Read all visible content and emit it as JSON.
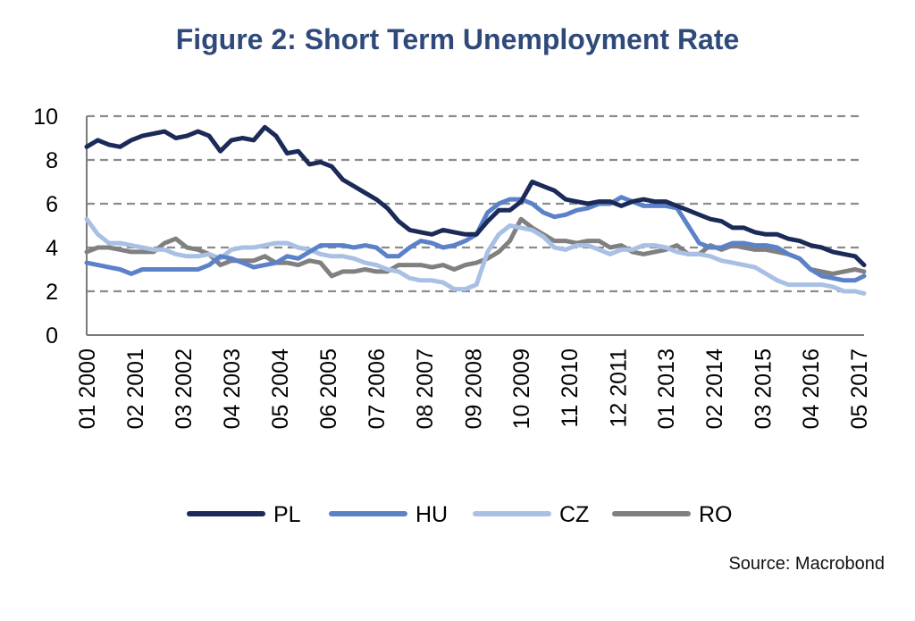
{
  "chart_data": {
    "type": "line",
    "title": "Figure 2: Short Term Unemployment Rate",
    "xlabel": "",
    "ylabel": "",
    "ylim": [
      0,
      10
    ],
    "yticks": [
      "0",
      "2",
      "4",
      "6",
      "8",
      "10"
    ],
    "xlim": [
      2000.0,
      2017.45
    ],
    "xtick_labels": [
      "01 2000",
      "02 2001",
      "03 2002",
      "04 2003",
      "05 2004",
      "06 2005",
      "07 2006",
      "08 2007",
      "09 2008",
      "10 2009",
      "11 2010",
      "12 2011",
      "01 2013",
      "02 2014",
      "03 2015",
      "04 2016",
      "05 2017"
    ],
    "xtick_values": [
      2000.0,
      2001.08,
      2002.17,
      2003.25,
      2004.33,
      2005.42,
      2006.5,
      2007.58,
      2008.67,
      2009.75,
      2010.83,
      2011.92,
      2013.0,
      2014.08,
      2015.17,
      2016.25,
      2017.33
    ],
    "grid": "horizontal dashed",
    "legend_position": "bottom",
    "x": [
      2000.0,
      2000.25,
      2000.5,
      2000.75,
      2001.0,
      2001.25,
      2001.5,
      2001.75,
      2002.0,
      2002.25,
      2002.5,
      2002.75,
      2003.0,
      2003.25,
      2003.5,
      2003.75,
      2004.0,
      2004.25,
      2004.5,
      2004.75,
      2005.0,
      2005.25,
      2005.5,
      2005.75,
      2006.0,
      2006.25,
      2006.5,
      2006.75,
      2007.0,
      2007.25,
      2007.5,
      2007.75,
      2008.0,
      2008.25,
      2008.5,
      2008.75,
      2009.0,
      2009.25,
      2009.5,
      2009.75,
      2010.0,
      2010.25,
      2010.5,
      2010.75,
      2011.0,
      2011.25,
      2011.5,
      2011.75,
      2012.0,
      2012.25,
      2012.5,
      2012.75,
      2013.0,
      2013.25,
      2013.5,
      2013.75,
      2014.0,
      2014.25,
      2014.5,
      2014.75,
      2015.0,
      2015.25,
      2015.5,
      2015.75,
      2016.0,
      2016.25,
      2016.5,
      2016.75,
      2017.0,
      2017.25,
      2017.45
    ],
    "series": [
      {
        "name": "PL",
        "color": "#1b2a57",
        "values": [
          8.6,
          8.9,
          8.7,
          8.6,
          8.9,
          9.1,
          9.2,
          9.3,
          9.0,
          9.1,
          9.3,
          9.1,
          8.4,
          8.9,
          9.0,
          8.9,
          9.5,
          9.1,
          8.3,
          8.4,
          7.8,
          7.9,
          7.7,
          7.1,
          6.8,
          6.5,
          6.2,
          5.8,
          5.2,
          4.8,
          4.7,
          4.6,
          4.8,
          4.7,
          4.6,
          4.6,
          5.2,
          5.7,
          5.7,
          6.1,
          7.0,
          6.8,
          6.6,
          6.2,
          6.1,
          6.0,
          6.1,
          6.1,
          5.9,
          6.1,
          6.2,
          6.1,
          6.1,
          5.9,
          5.7,
          5.5,
          5.3,
          5.2,
          4.9,
          4.9,
          4.7,
          4.6,
          4.6,
          4.4,
          4.3,
          4.1,
          4.0,
          3.8,
          3.7,
          3.6,
          3.2
        ]
      },
      {
        "name": "HU",
        "color": "#5b82c9",
        "values": [
          3.3,
          3.2,
          3.1,
          3.0,
          2.8,
          3.0,
          3.0,
          3.0,
          3.0,
          3.0,
          3.0,
          3.2,
          3.6,
          3.5,
          3.3,
          3.1,
          3.2,
          3.3,
          3.6,
          3.5,
          3.8,
          4.1,
          4.1,
          4.1,
          4.0,
          4.1,
          4.0,
          3.6,
          3.6,
          4.0,
          4.3,
          4.2,
          4.0,
          4.1,
          4.3,
          4.6,
          5.6,
          6.0,
          6.2,
          6.2,
          6.0,
          5.6,
          5.4,
          5.5,
          5.7,
          5.8,
          6.0,
          6.0,
          6.3,
          6.1,
          5.9,
          5.9,
          5.9,
          5.8,
          5.0,
          4.2,
          4.0,
          4.0,
          4.2,
          4.2,
          4.1,
          4.1,
          4.0,
          3.7,
          3.5,
          3.0,
          2.7,
          2.6,
          2.5,
          2.5,
          2.7
        ]
      },
      {
        "name": "CZ",
        "color": "#a9c0e4",
        "values": [
          5.3,
          4.6,
          4.2,
          4.2,
          4.1,
          4.0,
          3.9,
          3.9,
          3.7,
          3.6,
          3.6,
          3.7,
          3.5,
          3.9,
          4.0,
          4.0,
          4.1,
          4.2,
          4.2,
          4.0,
          3.9,
          3.7,
          3.6,
          3.6,
          3.5,
          3.3,
          3.2,
          3.0,
          2.9,
          2.6,
          2.5,
          2.5,
          2.4,
          2.1,
          2.1,
          2.3,
          3.8,
          4.6,
          5.0,
          4.9,
          4.8,
          4.5,
          4.0,
          3.9,
          4.1,
          4.1,
          3.9,
          3.7,
          3.9,
          3.9,
          4.1,
          4.1,
          4.0,
          3.8,
          3.7,
          3.7,
          3.6,
          3.4,
          3.3,
          3.2,
          3.1,
          2.8,
          2.5,
          2.3,
          2.3,
          2.3,
          2.3,
          2.2,
          2.0,
          2.0,
          1.9
        ]
      },
      {
        "name": "RO",
        "color": "#808080",
        "values": [
          3.8,
          4.0,
          4.0,
          3.9,
          3.8,
          3.8,
          3.8,
          4.2,
          4.4,
          4.0,
          3.9,
          3.7,
          3.2,
          3.4,
          3.4,
          3.4,
          3.6,
          3.3,
          3.3,
          3.2,
          3.4,
          3.3,
          2.7,
          2.9,
          2.9,
          3.0,
          2.9,
          2.9,
          3.2,
          3.2,
          3.2,
          3.1,
          3.2,
          3.0,
          3.2,
          3.3,
          3.5,
          3.8,
          4.3,
          5.3,
          4.9,
          4.6,
          4.3,
          4.3,
          4.2,
          4.3,
          4.3,
          4.0,
          4.1,
          3.8,
          3.7,
          3.8,
          3.9,
          4.1,
          3.7,
          3.7,
          4.1,
          3.9,
          4.1,
          4.0,
          3.9,
          3.9,
          3.8,
          3.7,
          3.5,
          3.0,
          2.9,
          2.8,
          2.9,
          3.0,
          2.9
        ]
      }
    ],
    "source": "Source: Macrobond"
  }
}
